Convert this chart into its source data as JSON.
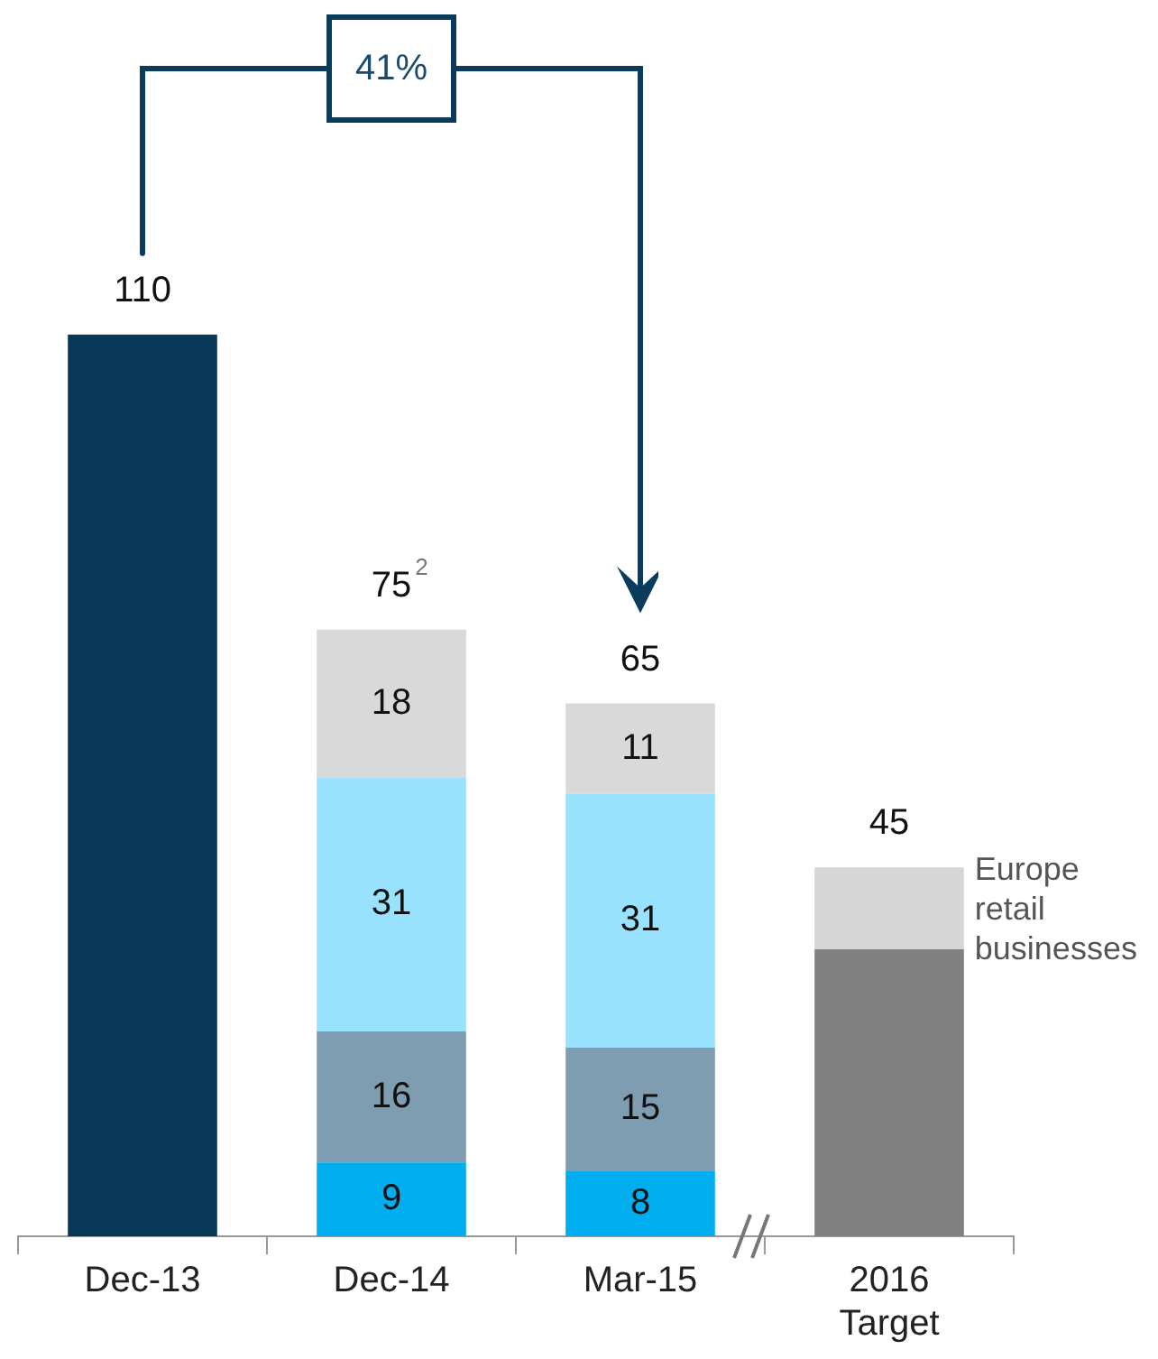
{
  "chart_data": {
    "type": "bar",
    "stacked": true,
    "categories": [
      "Dec-13",
      "Dec-14",
      "Mar-15",
      "2016 Target"
    ],
    "series": [
      {
        "color": "#07385a",
        "values": [
          110,
          null,
          null,
          null
        ]
      },
      {
        "color": "#00aeef",
        "values": [
          null,
          9,
          8,
          null
        ],
        "value_labels": [
          null,
          "9",
          "8",
          null
        ]
      },
      {
        "color": "#7f9db1",
        "values": [
          null,
          16,
          15,
          null
        ],
        "value_labels": [
          null,
          "16",
          "15",
          null
        ]
      },
      {
        "color": "#99e2fd",
        "values": [
          null,
          31,
          31,
          null
        ],
        "value_labels": [
          null,
          "31",
          "31",
          null
        ]
      },
      {
        "color": "#d9d9d9",
        "values": [
          null,
          18,
          11,
          null
        ],
        "value_labels": [
          null,
          "18",
          "11",
          null
        ]
      },
      {
        "color": "#808080",
        "values": [
          null,
          null,
          null,
          35
        ]
      },
      {
        "color": "#d6d6d6",
        "values": [
          null,
          null,
          null,
          10
        ]
      }
    ],
    "totals": [
      "110",
      "75$^{2}$",
      "65",
      "45"
    ],
    "annotations": [
      "41%",
      "Europe retail businesses"
    ],
    "tick_labels": "x",
    "grid": false,
    "legend": false
  }
}
